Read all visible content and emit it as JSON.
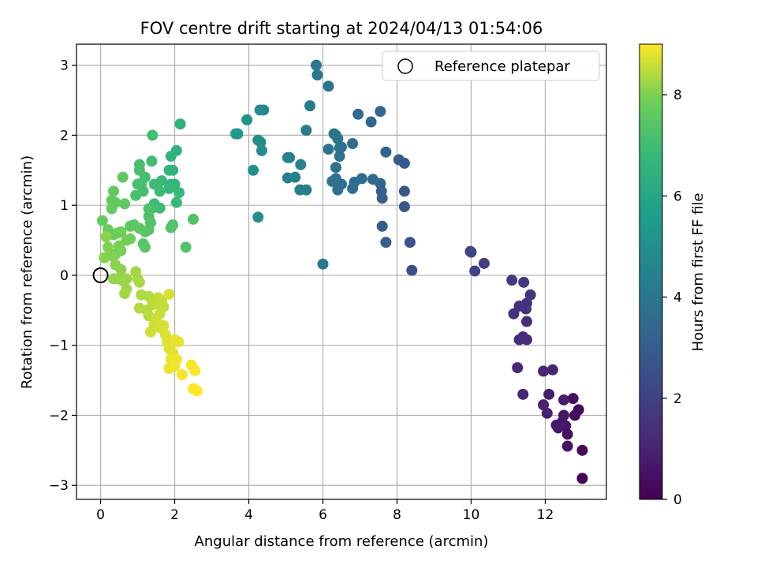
{
  "chart_data": {
    "type": "scatter",
    "title": "FOV centre drift starting at 2024/04/13 01:54:06",
    "xlabel": "Angular distance from reference (arcmin)",
    "ylabel": "Rotation from reference (arcmin)",
    "xlim": [
      -0.65,
      13.65
    ],
    "ylim": [
      -3.2,
      3.3
    ],
    "xticks": [
      0,
      2,
      4,
      6,
      8,
      10,
      12
    ],
    "yticks": [
      -3,
      -2,
      -1,
      0,
      1,
      2,
      3
    ],
    "grid": true,
    "legend": {
      "position": "top-right",
      "entries": [
        "Reference platepar"
      ]
    },
    "reference_point": {
      "x": 0,
      "y": 0,
      "marker": "open-circle"
    },
    "colorbar": {
      "label": "Hours from first FF file",
      "range": [
        0,
        9
      ],
      "ticks": [
        0,
        2,
        4,
        6,
        8
      ],
      "colormap": "viridis"
    },
    "points": [
      {
        "x": 13.0,
        "y": -2.9,
        "c": 0.1
      },
      {
        "x": 13.0,
        "y": -2.5,
        "c": 0.2
      },
      {
        "x": 12.8,
        "y": -2.0,
        "c": 0.3
      },
      {
        "x": 12.9,
        "y": -1.92,
        "c": 0.35
      },
      {
        "x": 12.75,
        "y": -1.76,
        "c": 0.4
      },
      {
        "x": 12.6,
        "y": -2.44,
        "c": 0.45
      },
      {
        "x": 12.6,
        "y": -2.27,
        "c": 0.5
      },
      {
        "x": 12.55,
        "y": -2.15,
        "c": 0.55
      },
      {
        "x": 12.5,
        "y": -2.0,
        "c": 0.6
      },
      {
        "x": 12.45,
        "y": -2.1,
        "c": 0.65
      },
      {
        "x": 12.35,
        "y": -2.18,
        "c": 0.7
      },
      {
        "x": 12.3,
        "y": -2.14,
        "c": 0.75
      },
      {
        "x": 12.5,
        "y": -1.78,
        "c": 0.8
      },
      {
        "x": 12.1,
        "y": -1.7,
        "c": 0.85
      },
      {
        "x": 12.05,
        "y": -1.97,
        "c": 0.9
      },
      {
        "x": 11.95,
        "y": -1.85,
        "c": 0.95
      },
      {
        "x": 12.2,
        "y": -1.35,
        "c": 1.0
      },
      {
        "x": 11.95,
        "y": -1.37,
        "c": 1.05
      },
      {
        "x": 11.4,
        "y": -1.7,
        "c": 1.1
      },
      {
        "x": 11.25,
        "y": -1.32,
        "c": 1.15
      },
      {
        "x": 11.5,
        "y": -0.92,
        "c": 1.2
      },
      {
        "x": 11.3,
        "y": -0.92,
        "c": 1.25
      },
      {
        "x": 11.4,
        "y": -0.88,
        "c": 1.3
      },
      {
        "x": 11.5,
        "y": -0.66,
        "c": 1.35
      },
      {
        "x": 11.15,
        "y": -0.55,
        "c": 1.4
      },
      {
        "x": 11.3,
        "y": -0.44,
        "c": 1.45
      },
      {
        "x": 11.5,
        "y": -0.4,
        "c": 1.5
      },
      {
        "x": 11.48,
        "y": -0.48,
        "c": 1.55
      },
      {
        "x": 11.6,
        "y": -0.28,
        "c": 1.6
      },
      {
        "x": 11.42,
        "y": -0.1,
        "c": 1.65
      },
      {
        "x": 11.1,
        "y": -0.07,
        "c": 1.7
      },
      {
        "x": 10.35,
        "y": 0.17,
        "c": 1.9
      },
      {
        "x": 10.1,
        "y": 0.06,
        "c": 2.0
      },
      {
        "x": 9.98,
        "y": 0.34,
        "c": 2.1
      },
      {
        "x": 10.0,
        "y": 0.33,
        "c": 2.15
      },
      {
        "x": 8.4,
        "y": 0.07,
        "c": 2.5
      },
      {
        "x": 8.35,
        "y": 0.47,
        "c": 2.6
      },
      {
        "x": 8.2,
        "y": 0.98,
        "c": 2.7
      },
      {
        "x": 8.2,
        "y": 1.2,
        "c": 2.8
      },
      {
        "x": 8.2,
        "y": 1.6,
        "c": 2.85
      },
      {
        "x": 8.05,
        "y": 1.65,
        "c": 2.9
      },
      {
        "x": 7.7,
        "y": 0.47,
        "c": 3.0
      },
      {
        "x": 7.6,
        "y": 0.7,
        "c": 3.05
      },
      {
        "x": 7.6,
        "y": 1.1,
        "c": 3.1
      },
      {
        "x": 7.58,
        "y": 1.2,
        "c": 3.15
      },
      {
        "x": 7.55,
        "y": 1.31,
        "c": 3.2
      },
      {
        "x": 7.7,
        "y": 1.76,
        "c": 3.25
      },
      {
        "x": 7.55,
        "y": 2.34,
        "c": 3.3
      },
      {
        "x": 7.3,
        "y": 2.19,
        "c": 3.35
      },
      {
        "x": 7.35,
        "y": 1.37,
        "c": 3.4
      },
      {
        "x": 7.05,
        "y": 1.38,
        "c": 3.45
      },
      {
        "x": 6.95,
        "y": 2.3,
        "c": 3.5
      },
      {
        "x": 6.8,
        "y": 1.88,
        "c": 3.55
      },
      {
        "x": 6.8,
        "y": 1.24,
        "c": 3.6
      },
      {
        "x": 6.85,
        "y": 1.33,
        "c": 3.62
      },
      {
        "x": 6.5,
        "y": 1.3,
        "c": 3.65
      },
      {
        "x": 6.4,
        "y": 1.22,
        "c": 3.7
      },
      {
        "x": 6.35,
        "y": 1.38,
        "c": 3.72
      },
      {
        "x": 6.25,
        "y": 1.34,
        "c": 3.75
      },
      {
        "x": 6.35,
        "y": 1.54,
        "c": 3.78
      },
      {
        "x": 6.45,
        "y": 1.7,
        "c": 3.8
      },
      {
        "x": 6.45,
        "y": 1.82,
        "c": 3.82
      },
      {
        "x": 6.5,
        "y": 1.83,
        "c": 3.85
      },
      {
        "x": 6.4,
        "y": 1.95,
        "c": 3.87
      },
      {
        "x": 6.3,
        "y": 2.02,
        "c": 3.9
      },
      {
        "x": 6.35,
        "y": 2.0,
        "c": 3.92
      },
      {
        "x": 6.15,
        "y": 1.8,
        "c": 3.95
      },
      {
        "x": 6.15,
        "y": 2.7,
        "c": 3.97
      },
      {
        "x": 5.85,
        "y": 2.86,
        "c": 4.0
      },
      {
        "x": 5.82,
        "y": 3.0,
        "c": 4.05
      },
      {
        "x": 6.0,
        "y": 0.16,
        "c": 4.1
      },
      {
        "x": 5.65,
        "y": 2.42,
        "c": 4.15
      },
      {
        "x": 5.55,
        "y": 2.07,
        "c": 4.2
      },
      {
        "x": 5.55,
        "y": 1.22,
        "c": 4.25
      },
      {
        "x": 5.38,
        "y": 1.22,
        "c": 4.3
      },
      {
        "x": 5.4,
        "y": 1.58,
        "c": 4.35
      },
      {
        "x": 5.25,
        "y": 1.4,
        "c": 4.4
      },
      {
        "x": 5.1,
        "y": 1.68,
        "c": 4.45
      },
      {
        "x": 5.05,
        "y": 1.39,
        "c": 4.5
      },
      {
        "x": 5.05,
        "y": 1.68,
        "c": 4.55
      },
      {
        "x": 4.4,
        "y": 2.36,
        "c": 4.8
      },
      {
        "x": 4.3,
        "y": 2.36,
        "c": 4.85
      },
      {
        "x": 4.35,
        "y": 1.78,
        "c": 4.9
      },
      {
        "x": 4.32,
        "y": 1.9,
        "c": 4.95
      },
      {
        "x": 4.25,
        "y": 1.93,
        "c": 5.0
      },
      {
        "x": 4.25,
        "y": 0.83,
        "c": 5.05
      },
      {
        "x": 4.12,
        "y": 1.5,
        "c": 5.1
      },
      {
        "x": 3.95,
        "y": 2.22,
        "c": 5.2
      },
      {
        "x": 3.65,
        "y": 2.02,
        "c": 5.35
      },
      {
        "x": 3.7,
        "y": 2.02,
        "c": 5.4
      },
      {
        "x": 2.15,
        "y": 2.16,
        "c": 6.4
      },
      {
        "x": 2.05,
        "y": 1.78,
        "c": 6.5
      },
      {
        "x": 1.9,
        "y": 1.7,
        "c": 6.55
      },
      {
        "x": 1.95,
        "y": 1.5,
        "c": 6.6
      },
      {
        "x": 1.85,
        "y": 1.5,
        "c": 6.65
      },
      {
        "x": 1.9,
        "y": 1.3,
        "c": 6.7
      },
      {
        "x": 2.0,
        "y": 1.3,
        "c": 6.72
      },
      {
        "x": 1.85,
        "y": 1.24,
        "c": 6.75
      },
      {
        "x": 2.12,
        "y": 1.18,
        "c": 6.78
      },
      {
        "x": 2.05,
        "y": 1.04,
        "c": 6.8
      },
      {
        "x": 1.65,
        "y": 1.35,
        "c": 6.85
      },
      {
        "x": 1.6,
        "y": 1.2,
        "c": 6.87
      },
      {
        "x": 1.6,
        "y": 0.96,
        "c": 6.9
      },
      {
        "x": 1.45,
        "y": 1.3,
        "c": 6.92
      },
      {
        "x": 1.45,
        "y": 1.02,
        "c": 6.95
      },
      {
        "x": 1.4,
        "y": 0.96,
        "c": 6.97
      },
      {
        "x": 1.38,
        "y": 1.63,
        "c": 7.0
      },
      {
        "x": 1.4,
        "y": 2.0,
        "c": 7.02
      },
      {
        "x": 1.2,
        "y": 1.4,
        "c": 7.05
      },
      {
        "x": 1.15,
        "y": 1.2,
        "c": 7.07
      },
      {
        "x": 1.1,
        "y": 1.31,
        "c": 7.1
      },
      {
        "x": 1.0,
        "y": 1.3,
        "c": 7.12
      },
      {
        "x": 1.05,
        "y": 1.5,
        "c": 7.15
      },
      {
        "x": 1.05,
        "y": 1.58,
        "c": 7.17
      },
      {
        "x": 0.95,
        "y": 1.14,
        "c": 7.2
      },
      {
        "x": 1.3,
        "y": 0.95,
        "c": 7.22
      },
      {
        "x": 1.3,
        "y": 0.84,
        "c": 7.25
      },
      {
        "x": 1.35,
        "y": 0.75,
        "c": 7.27
      },
      {
        "x": 2.5,
        "y": 0.8,
        "c": 7.3
      },
      {
        "x": 2.3,
        "y": 0.4,
        "c": 7.32
      },
      {
        "x": 1.95,
        "y": 0.72,
        "c": 7.35
      },
      {
        "x": 1.9,
        "y": 0.68,
        "c": 7.37
      },
      {
        "x": 1.3,
        "y": 0.65,
        "c": 7.4
      },
      {
        "x": 1.2,
        "y": 0.62,
        "c": 7.42
      },
      {
        "x": 1.2,
        "y": 0.4,
        "c": 7.45
      },
      {
        "x": 1.15,
        "y": 0.45,
        "c": 7.47
      },
      {
        "x": 1.05,
        "y": 0.67,
        "c": 7.5
      },
      {
        "x": 0.9,
        "y": 0.72,
        "c": 7.52
      },
      {
        "x": 0.8,
        "y": 0.7,
        "c": 7.55
      },
      {
        "x": 0.65,
        "y": 1.02,
        "c": 7.57
      },
      {
        "x": 0.6,
        "y": 1.4,
        "c": 7.6
      },
      {
        "x": 0.35,
        "y": 1.2,
        "c": 7.62
      },
      {
        "x": 0.3,
        "y": 1.07,
        "c": 7.65
      },
      {
        "x": 0.3,
        "y": 0.95,
        "c": 7.67
      },
      {
        "x": 0.4,
        "y": 1.04,
        "c": 7.7
      },
      {
        "x": 0.05,
        "y": 0.78,
        "c": 7.72
      },
      {
        "x": 0.2,
        "y": 0.65,
        "c": 7.75
      },
      {
        "x": 0.25,
        "y": 0.6,
        "c": 7.77
      },
      {
        "x": 0.35,
        "y": 0.58,
        "c": 7.8
      },
      {
        "x": 0.45,
        "y": 0.6,
        "c": 7.82
      },
      {
        "x": 0.55,
        "y": 0.62,
        "c": 7.85
      },
      {
        "x": 0.8,
        "y": 0.52,
        "c": 7.87
      },
      {
        "x": 0.7,
        "y": 0.5,
        "c": 7.9
      },
      {
        "x": 0.5,
        "y": 0.42,
        "c": 7.92
      },
      {
        "x": 0.55,
        "y": 0.35,
        "c": 7.95
      },
      {
        "x": 0.4,
        "y": 0.3,
        "c": 7.97
      },
      {
        "x": 0.3,
        "y": 0.28,
        "c": 8.0
      },
      {
        "x": 0.2,
        "y": 0.4,
        "c": 8.02
      },
      {
        "x": 0.1,
        "y": 0.25,
        "c": 8.05
      },
      {
        "x": 0.15,
        "y": 0.55,
        "c": 8.07
      },
      {
        "x": 0.4,
        "y": 0.15,
        "c": 8.1
      },
      {
        "x": 0.55,
        "y": 0.08,
        "c": 8.12
      },
      {
        "x": 0.45,
        "y": -0.05,
        "c": 8.15
      },
      {
        "x": 0.35,
        "y": -0.05,
        "c": 8.17
      },
      {
        "x": 0.6,
        "y": -0.08,
        "c": 8.2
      },
      {
        "x": 0.7,
        "y": -0.05,
        "c": 8.22
      },
      {
        "x": 0.7,
        "y": -0.2,
        "c": 8.25
      },
      {
        "x": 0.65,
        "y": -0.26,
        "c": 8.27
      },
      {
        "x": 0.95,
        "y": 0.05,
        "c": 8.3
      },
      {
        "x": 1.0,
        "y": -0.05,
        "c": 8.32
      },
      {
        "x": 1.05,
        "y": -0.1,
        "c": 8.35
      },
      {
        "x": 1.1,
        "y": -0.28,
        "c": 8.37
      },
      {
        "x": 1.3,
        "y": -0.3,
        "c": 8.4
      },
      {
        "x": 1.05,
        "y": -0.47,
        "c": 8.42
      },
      {
        "x": 1.25,
        "y": -0.5,
        "c": 8.44
      },
      {
        "x": 1.3,
        "y": -0.58,
        "c": 8.46
      },
      {
        "x": 1.4,
        "y": -0.42,
        "c": 8.48
      },
      {
        "x": 1.5,
        "y": -0.4,
        "c": 8.5
      },
      {
        "x": 1.55,
        "y": -0.32,
        "c": 8.52
      },
      {
        "x": 1.65,
        "y": -0.36,
        "c": 8.54
      },
      {
        "x": 1.7,
        "y": -0.45,
        "c": 8.56
      },
      {
        "x": 1.6,
        "y": -0.55,
        "c": 8.58
      },
      {
        "x": 1.5,
        "y": -0.62,
        "c": 8.6
      },
      {
        "x": 1.45,
        "y": -0.7,
        "c": 8.62
      },
      {
        "x": 1.35,
        "y": -0.81,
        "c": 8.64
      },
      {
        "x": 1.6,
        "y": -0.75,
        "c": 8.66
      },
      {
        "x": 1.7,
        "y": -0.72,
        "c": 8.68
      },
      {
        "x": 1.85,
        "y": -0.27,
        "c": 8.7
      },
      {
        "x": 1.75,
        "y": -0.85,
        "c": 8.72
      },
      {
        "x": 1.8,
        "y": -0.95,
        "c": 8.74
      },
      {
        "x": 1.85,
        "y": -1.05,
        "c": 8.76
      },
      {
        "x": 1.95,
        "y": -1.1,
        "c": 8.78
      },
      {
        "x": 2.0,
        "y": -0.92,
        "c": 8.8
      },
      {
        "x": 2.1,
        "y": -0.95,
        "c": 8.82
      },
      {
        "x": 1.9,
        "y": -1.2,
        "c": 8.84
      },
      {
        "x": 1.85,
        "y": -1.33,
        "c": 8.86
      },
      {
        "x": 2.05,
        "y": -1.2,
        "c": 8.88
      },
      {
        "x": 2.0,
        "y": -1.3,
        "c": 8.9
      },
      {
        "x": 2.2,
        "y": -1.42,
        "c": 8.92
      },
      {
        "x": 2.45,
        "y": -1.28,
        "c": 8.94
      },
      {
        "x": 2.55,
        "y": -1.36,
        "c": 8.96
      },
      {
        "x": 2.5,
        "y": -1.62,
        "c": 8.98
      },
      {
        "x": 2.6,
        "y": -1.65,
        "c": 9.0
      }
    ]
  }
}
